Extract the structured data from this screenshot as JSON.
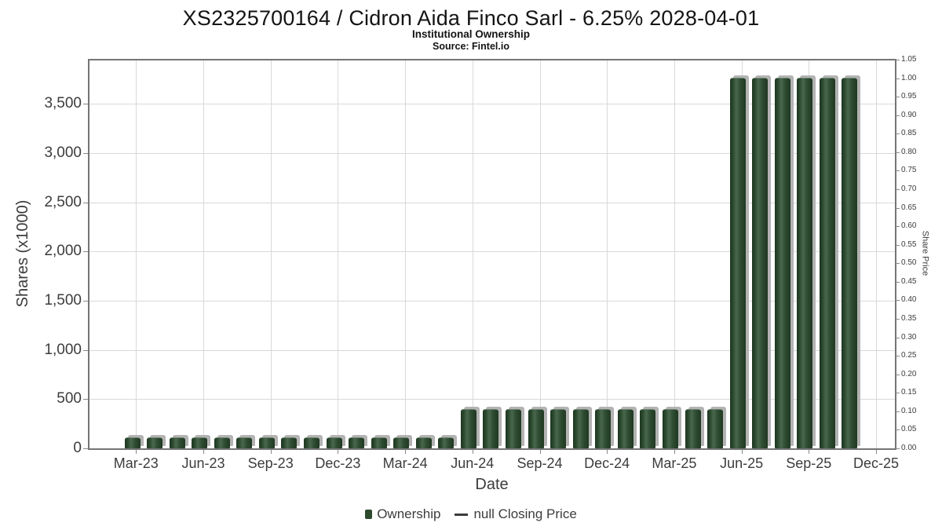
{
  "header": {
    "title": "XS2325700164 / Cidron Aida Finco Sarl - 6.25% 2028-04-01",
    "subtitle": "Institutional Ownership",
    "source": "Source: Fintel.io"
  },
  "chart_data": {
    "type": "bar",
    "title": "XS2325700164 / Cidron Aida Finco Sarl - 6.25% 2028-04-01",
    "subtitle": "Institutional Ownership",
    "source": "Source: Fintel.io",
    "xlabel": "Date",
    "ylabel_left": "Shares (x1000)",
    "ylabel_right": "Share Price",
    "grid": true,
    "legend_position": "bottom",
    "colors": {
      "bar": "#2d4a2e",
      "bar_shadow": "#b3b3b3",
      "gridline": "#d9d9d9",
      "plot_border": "#757575",
      "tick_text": "#3c3c3c",
      "title_text": "#141414"
    },
    "x_quarter_tick_labels": [
      "Mar-23",
      "Jun-23",
      "Sep-23",
      "Dec-23",
      "Mar-24",
      "Jun-24",
      "Sep-24",
      "Dec-24",
      "Mar-25",
      "Jun-25",
      "Sep-25",
      "Dec-25"
    ],
    "y_left": {
      "min": 0,
      "max": 3950,
      "ticks": [
        0,
        500,
        1000,
        1500,
        2000,
        2500,
        3000,
        3500
      ],
      "tick_labels": [
        "0",
        "500",
        "1,000",
        "1,500",
        "2,000",
        "2,500",
        "3,000",
        "3,500"
      ]
    },
    "y_right": {
      "min": 0.0,
      "max": 1.05,
      "tick_labels": [
        "0.00",
        "0.05",
        "0.10",
        "0.15",
        "0.20",
        "0.25",
        "0.30",
        "0.35",
        "0.40",
        "0.45",
        "0.50",
        "0.55",
        "0.60",
        "0.65",
        "0.70",
        "0.75",
        "0.80",
        "0.85",
        "0.90",
        "0.95",
        "1.00",
        "1.05"
      ]
    },
    "series": [
      {
        "name": "Ownership",
        "type": "bar",
        "axis": "left",
        "x": [
          "Mar-23",
          "Apr-23",
          "May-23",
          "Jun-23",
          "Jul-23",
          "Aug-23",
          "Sep-23",
          "Oct-23",
          "Nov-23",
          "Dec-23",
          "Jan-24",
          "Feb-24",
          "Mar-24",
          "Apr-24",
          "May-24",
          "Jun-24",
          "Jul-24",
          "Aug-24",
          "Sep-24",
          "Oct-24",
          "Nov-24",
          "Dec-24",
          "Jan-25",
          "Feb-25",
          "Mar-25",
          "Apr-25",
          "May-25",
          "Jun-25",
          "Jul-25",
          "Aug-25",
          "Sep-25",
          "Oct-25",
          "Nov-25"
        ],
        "values": [
          100,
          100,
          100,
          100,
          100,
          100,
          100,
          100,
          100,
          100,
          100,
          100,
          100,
          100,
          100,
          390,
          390,
          390,
          390,
          390,
          390,
          390,
          390,
          390,
          390,
          390,
          390,
          3760,
          3760,
          3760,
          3760,
          3760,
          3760
        ]
      },
      {
        "name": "null Closing Price",
        "type": "line",
        "axis": "right",
        "values": []
      }
    ],
    "legend": [
      {
        "label": "Ownership",
        "marker": "square"
      },
      {
        "label": "null Closing Price",
        "marker": "line"
      }
    ]
  }
}
